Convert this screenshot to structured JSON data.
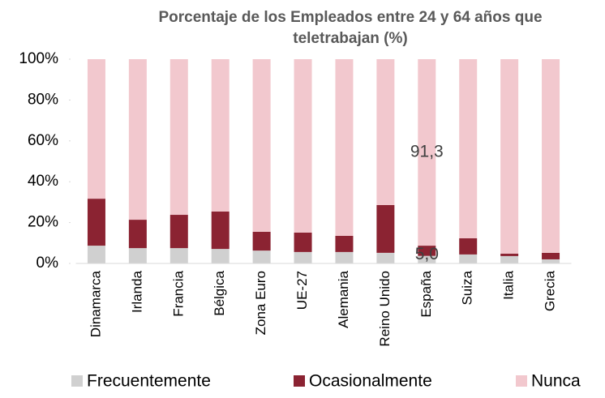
{
  "chart_data": {
    "type": "stacked_bar",
    "title": [
      "Porcentaje de los Empleados entre 24 y 64 años que",
      "teletrabajan (%)"
    ],
    "categories": [
      "Dinamarca",
      "Irlanda",
      "Francia",
      "Bélgica",
      "Zona Euro",
      "UE-27",
      "Alemania",
      "Reino Unido",
      "España",
      "Suiza",
      "Italia",
      "Grecia"
    ],
    "series": [
      {
        "name": "Frecuentemente",
        "color": "#d0d0d0",
        "values": [
          8.7,
          7.5,
          7.5,
          7.1,
          6.3,
          5.6,
          5.6,
          5.2,
          3.7,
          4.4,
          3.6,
          2.0
        ]
      },
      {
        "name": "Ocasionalmente",
        "color": "#8b2332",
        "values": [
          23.0,
          13.9,
          16.3,
          18.3,
          9.2,
          9.5,
          7.9,
          23.4,
          5.0,
          7.9,
          1.2,
          3.2
        ],
        "value_labels": [
          null,
          null,
          null,
          null,
          null,
          null,
          null,
          null,
          "5,0",
          null,
          null,
          null
        ]
      },
      {
        "name": "Nunca",
        "color": "#f2c8ce",
        "values": [
          68.3,
          78.6,
          76.2,
          74.6,
          84.5,
          84.9,
          86.5,
          71.4,
          91.3,
          87.7,
          95.2,
          94.8
        ],
        "value_labels": [
          null,
          null,
          null,
          null,
          null,
          null,
          null,
          null,
          "91,3",
          null,
          null,
          null
        ]
      }
    ],
    "ylim": [
      0,
      100
    ],
    "yticks": [
      {
        "value": 0,
        "label": "0%"
      },
      {
        "value": 20,
        "label": "20%"
      },
      {
        "value": 40,
        "label": "40%"
      },
      {
        "value": 60,
        "label": "60%"
      },
      {
        "value": 80,
        "label": "80%"
      },
      {
        "value": 100,
        "label": "100%"
      }
    ],
    "legend": "bottom"
  }
}
